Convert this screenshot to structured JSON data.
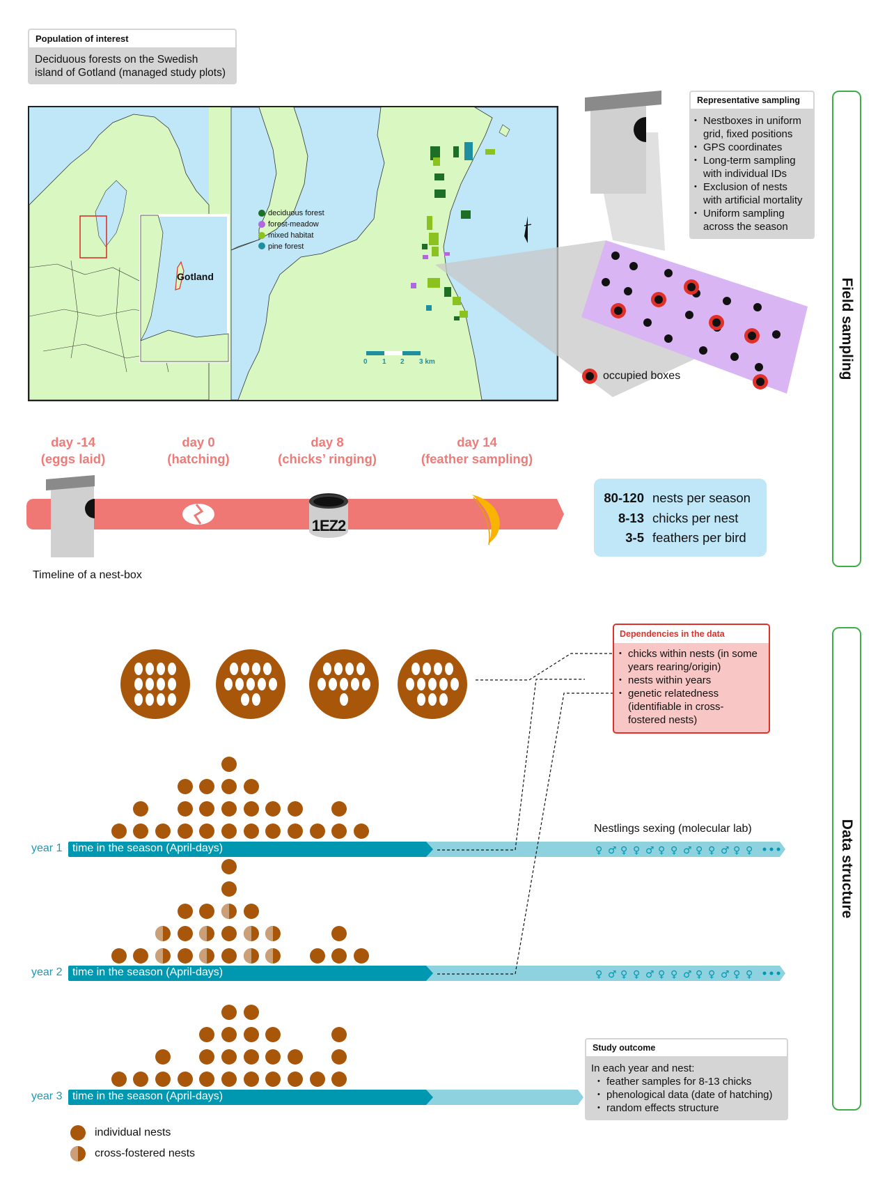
{
  "population": {
    "title": "Population of interest",
    "text_line1": "Deciduous forests on the Swedish",
    "text_line2": "island of Gotland (managed study plots)"
  },
  "map": {
    "gotland_label": "Gotland",
    "legend": [
      {
        "label": "deciduous forest",
        "color": "#1e6f26"
      },
      {
        "label": "forest-meadow",
        "color": "#b266e0"
      },
      {
        "label": "mixed habitat",
        "color": "#8cc21f"
      },
      {
        "label": "pine forest",
        "color": "#1f8fa0"
      }
    ],
    "scale_ticks": [
      "0",
      "1",
      "2",
      "3 km"
    ],
    "water_color": "#bfe7f8",
    "land_color": "#d9f7c0"
  },
  "representative_sampling": {
    "title": "Representative sampling",
    "items": [
      [
        "Nestboxes in uniform",
        "grid, fixed positions"
      ],
      [
        "GPS coordinates"
      ],
      [
        "Long-term sampling",
        "with individual IDs"
      ],
      [
        "Exclusion of nests",
        "with artificial mortality"
      ],
      [
        "Uniform sampling",
        "across the season"
      ]
    ]
  },
  "occupied_label": "occupied boxes",
  "sections": {
    "field_sampling": "Field sampling",
    "data_structure": "Data structure"
  },
  "timeline": {
    "events": [
      {
        "day": "day -14",
        "desc": "(eggs laid)"
      },
      {
        "day": "day 0",
        "desc": "(hatching)"
      },
      {
        "day": "day 8",
        "desc": "(chicks’ ringing)"
      },
      {
        "day": "day 14",
        "desc": "(feather sampling)"
      }
    ],
    "ring_code": "1EZ2",
    "caption": "Timeline of a nest-box",
    "bar_color": "#f07874"
  },
  "stats": [
    {
      "value": "80-120",
      "label": "nests per season"
    },
    {
      "value": "8-13",
      "label": "chicks per nest"
    },
    {
      "value": "3-5",
      "label": "feathers per bird"
    }
  ],
  "dependencies": {
    "title": "Dependencies in the data",
    "items": [
      [
        "chicks within nests (in some",
        "years rearing/origin)"
      ],
      [
        "nests within years"
      ],
      [
        "genetic relatedness",
        "(identifiable in cross-",
        "fostered nests)"
      ]
    ]
  },
  "sexing_label": "Nestlings sexing (molecular lab)",
  "years": [
    {
      "label": "year 1",
      "bar_text": "time in the season (April-days)"
    },
    {
      "label": "year 2",
      "bar_text": "time in the season (April-days)"
    },
    {
      "label": "year 3",
      "bar_text": "time in the season (April-days)"
    }
  ],
  "outcome": {
    "title": "Study outcome",
    "intro": "In each year and nest:",
    "items": [
      "feather samples for 8-13 chicks",
      "phenological data (date of hatching)",
      "random effects structure"
    ]
  },
  "legend_bottom": {
    "individual": "individual nests",
    "cross": "cross-fostered nests"
  },
  "colors": {
    "nest_brown": "#a8570a",
    "cross_tan": "#c9a07a",
    "teal_dark": "#0097b0",
    "teal_light": "#8ed1df"
  }
}
